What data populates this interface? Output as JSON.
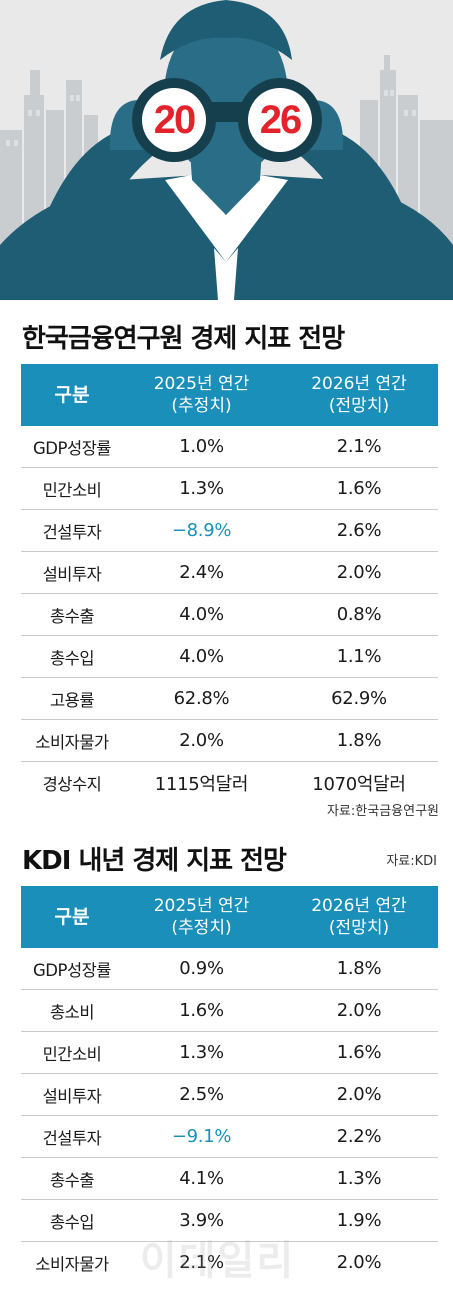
{
  "hero": {
    "year_left": "20",
    "year_right": "26",
    "colors": {
      "background": "#e9e9e9",
      "suit": "#1e5d73",
      "skin": "#2a6d86",
      "accent": "#e3232b"
    },
    "icons": [
      "city-skyline-illustration",
      "person-with-binoculars-illustration"
    ]
  },
  "kif": {
    "title": "한국금융연구원 경제 지표 전망",
    "headers": {
      "col1": "구분",
      "col2_line1": "2025년 연간",
      "col2_line2": "(추정치)",
      "col3_line1": "2026년 연간",
      "col3_line2": "(전망치)"
    },
    "rows": [
      {
        "label": "GDP성장률",
        "v2025": "1.0%",
        "v2026": "2.1%"
      },
      {
        "label": "민간소비",
        "v2025": "1.3%",
        "v2026": "1.6%"
      },
      {
        "label": "건설투자",
        "v2025": "−8.9%",
        "v2026": "2.6%"
      },
      {
        "label": "설비투자",
        "v2025": "2.4%",
        "v2026": "2.0%"
      },
      {
        "label": "총수출",
        "v2025": "4.0%",
        "v2026": "0.8%"
      },
      {
        "label": "총수입",
        "v2025": "4.0%",
        "v2026": "1.1%"
      },
      {
        "label": "고용률",
        "v2025": "62.8%",
        "v2026": "62.9%"
      },
      {
        "label": "소비자물가",
        "v2025": "2.0%",
        "v2026": "1.8%"
      },
      {
        "label": "경상수지",
        "v2025": "1115억달러",
        "v2026": "1070억달러"
      }
    ],
    "source": "자료:한국금융연구원"
  },
  "kdi": {
    "title": "KDI 내년 경제 지표 전망",
    "source": "자료:KDI",
    "headers": {
      "col1": "구분",
      "col2_line1": "2025년 연간",
      "col2_line2": "(추정치)",
      "col3_line1": "2026년 연간",
      "col3_line2": "(전망치)"
    },
    "rows": [
      {
        "label": "GDP성장률",
        "v2025": "0.9%",
        "v2026": "1.8%"
      },
      {
        "label": "총소비",
        "v2025": "1.6%",
        "v2026": "2.0%"
      },
      {
        "label": "민간소비",
        "v2025": "1.3%",
        "v2026": "1.6%"
      },
      {
        "label": "설비투자",
        "v2025": "2.5%",
        "v2026": "2.0%"
      },
      {
        "label": "건설투자",
        "v2025": "−9.1%",
        "v2026": "2.2%"
      },
      {
        "label": "총수출",
        "v2025": "4.1%",
        "v2026": "1.3%"
      },
      {
        "label": "총수입",
        "v2025": "3.9%",
        "v2026": "1.9%"
      },
      {
        "label": "소비자물가",
        "v2025": "2.1%",
        "v2026": "2.0%"
      }
    ]
  },
  "watermark": "이데일리",
  "theme": {
    "header_blue": "#1a8fb9",
    "negative_blue": "#1a8fb9"
  }
}
